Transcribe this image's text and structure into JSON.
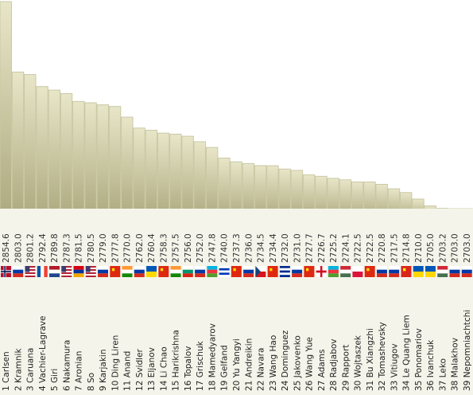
{
  "chart_data": {
    "type": "bar",
    "orientation": "vertical",
    "title": "",
    "xlabel": "",
    "ylabel": "",
    "categories": [
      "1 Carlsen",
      "2 Kramnik",
      "3 Caruana",
      "4 Vachier-Lagrave",
      "5 Giri",
      "6 Nakamura",
      "7 Aronian",
      "8 So",
      "9 Karjakin",
      "10 Ding Liren",
      "11 Anand",
      "12 Svidler",
      "13 Eljanov",
      "14 Li Chao",
      "15 Harikrishna",
      "16 Topalov",
      "17 Grischuk",
      "18 Mamedyarov",
      "19 Gelfand",
      "20 Yu Yangyi",
      "21 Andreikin",
      "22 Navara",
      "23 Wang Hao",
      "24 Dominguez",
      "25 Jakovenko",
      "26 Wang Yue",
      "27 Adams",
      "28 Radjabov",
      "29 Rapport",
      "30 Wojtaszek",
      "31 Bu Xiangzhi",
      "32 Tomashevsky",
      "33 Vitiugov",
      "34 Le Quang Liem",
      "35 Ponomariov",
      "36 Ivanchuk",
      "37 Leko",
      "38 Malakhov",
      "39 Nepomniachtchi"
    ],
    "values": [
      2854.6,
      2803.0,
      2801.2,
      2792.4,
      2789.8,
      2787.3,
      2781.5,
      2780.5,
      2779.0,
      2777.8,
      2770.0,
      2762.0,
      2760.4,
      2758.3,
      2757.5,
      2756.0,
      2752.0,
      2747.8,
      2740.0,
      2737.3,
      2736.0,
      2734.5,
      2734.4,
      2732.0,
      2731.0,
      2727.7,
      2726.7,
      2725.2,
      2724.1,
      2722.5,
      2722.5,
      2720.8,
      2717.5,
      2714.8,
      2710.0,
      2705.0,
      2703.2,
      2703.0,
      2703.0
    ],
    "value_labels": [
      "2854.6",
      "2803.0",
      "2801.2",
      "2792.4",
      "2789.8",
      "2787.3",
      "2781.5",
      "2780.5",
      "2779.0",
      "2777.8",
      "2770.0",
      "2762.0",
      "2760.4",
      "2758.3",
      "2757.5",
      "2756.0",
      "2752.0",
      "2747.8",
      "2740.0",
      "2737.3",
      "2736.0",
      "2734.5",
      "2734.4",
      "2732.0",
      "2731.0",
      "2727.7",
      "2726.7",
      "2725.2",
      "2724.1",
      "2722.5",
      "2722.5",
      "2720.8",
      "2717.5",
      "2714.8",
      "2710.0",
      "2705.0",
      "2703.2",
      "2703.0",
      "2703.0"
    ],
    "flags": [
      "NOR",
      "RUS",
      "USA",
      "FRA",
      "NED",
      "USA",
      "ARM",
      "USA",
      "RUS",
      "CHN",
      "IND",
      "RUS",
      "UKR",
      "CHN",
      "IND",
      "BUL",
      "RUS",
      "AZE",
      "ISR",
      "CHN",
      "RUS",
      "CZE",
      "CHN",
      "CUB",
      "RUS",
      "CHN",
      "ENG",
      "AZE",
      "HUN",
      "POL",
      "CHN",
      "RUS",
      "RUS",
      "VIE",
      "UKR",
      "UKR",
      "HUN",
      "RUS",
      "RUS"
    ],
    "ylim": [
      2703,
      2854.6
    ],
    "grid": false,
    "colors": {
      "bar_top": "#e8e6c8",
      "bar_bottom": "#aca87e",
      "bar_edge": "#c9c8a4"
    }
  }
}
